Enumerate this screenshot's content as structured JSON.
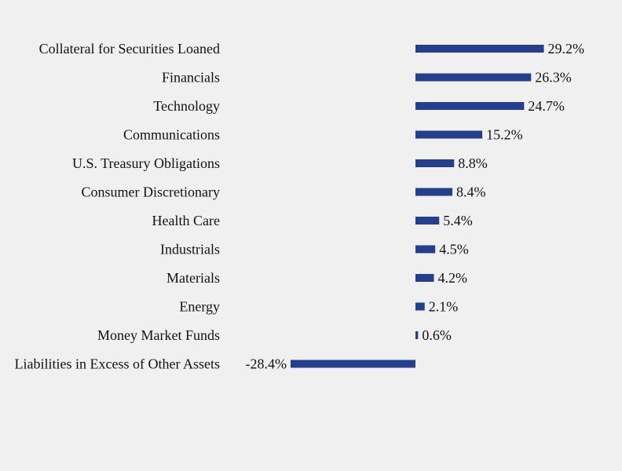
{
  "chart_data": {
    "type": "bar",
    "orientation": "horizontal",
    "title": "",
    "xlabel": "",
    "ylabel": "",
    "grid": false,
    "legend": "none",
    "bar_color": "#263f8c",
    "background_color": "#f0f0f1",
    "xlim": [
      -28.4,
      29.2
    ],
    "categories": [
      "Collateral for Securities Loaned",
      "Financials",
      "Technology",
      "Communications",
      "U.S. Treasury Obligations",
      "Consumer Discretionary",
      "Health Care",
      "Industrials",
      "Materials",
      "Energy",
      "Money Market Funds",
      "Liabilities in Excess of Other Assets"
    ],
    "values": [
      29.2,
      26.3,
      24.7,
      15.2,
      8.8,
      8.4,
      5.4,
      4.5,
      4.2,
      2.1,
      0.6,
      -28.4
    ],
    "value_labels": [
      "29.2%",
      "26.3%",
      "24.7%",
      "15.2%",
      "8.8%",
      "8.4%",
      "5.4%",
      "4.5%",
      "4.2%",
      "2.1%",
      "0.6%",
      "-28.4%"
    ]
  }
}
